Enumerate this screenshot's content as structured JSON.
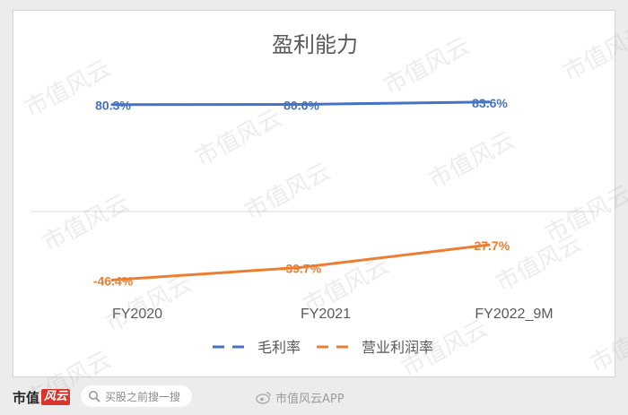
{
  "chart_data": {
    "type": "line",
    "title": "盈利能力",
    "categories": [
      "FY2020",
      "FY2021",
      "FY2022_9M"
    ],
    "series": [
      {
        "name": "毛利率",
        "values": [
          80.3,
          80.6,
          83.6
        ],
        "labels": [
          "80.3%",
          "80.6%",
          "83.6%"
        ],
        "color": "#4472c4"
      },
      {
        "name": "营业利润率",
        "values": [
          -46.4,
          -39.7,
          -27.7
        ],
        "labels": [
          "-46.4%",
          "-39.7%",
          "-27.7%"
        ],
        "color": "#ed7d31"
      }
    ],
    "ylim": [
      -60,
      100
    ],
    "grid": false,
    "legend_position": "bottom",
    "label_colors": {
      "category": "#595959",
      "title": "#595959",
      "legend": "#595959",
      "axis_line": "#d9d9d9"
    }
  },
  "watermark": "市值风云",
  "footer": {
    "brand_text": "市值",
    "brand_seal": "风云",
    "search_placeholder": "买股之前搜一搜",
    "weibo_text": "市值风云APP"
  },
  "icons": {
    "search": "search-icon",
    "weibo": "weibo-icon"
  }
}
